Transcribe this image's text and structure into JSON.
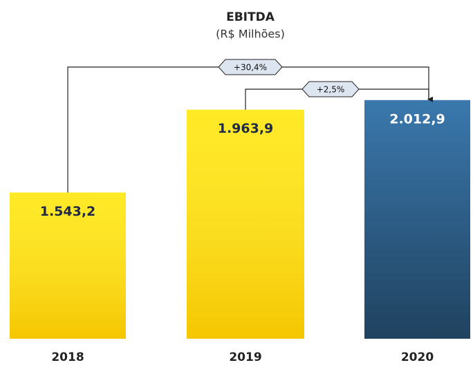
{
  "chart_data": {
    "type": "bar",
    "title": "EBITDA",
    "subtitle": "(R$ Milhões)",
    "categories": [
      "2018",
      "2019",
      "2020"
    ],
    "values": [
      1543.2,
      1963.9,
      2012.9
    ],
    "value_labels": [
      "1.543,2",
      "1.963,9",
      "2.012,9"
    ],
    "colors": [
      "#ffe600",
      "#ffe600",
      "#3a78ad"
    ],
    "value_label_colors": [
      "#1f2a44",
      "#1f2a44",
      "#ffffff"
    ],
    "ylim": [
      800,
      2100
    ],
    "annotations": [
      "+30,4%",
      "+2,5%"
    ]
  }
}
